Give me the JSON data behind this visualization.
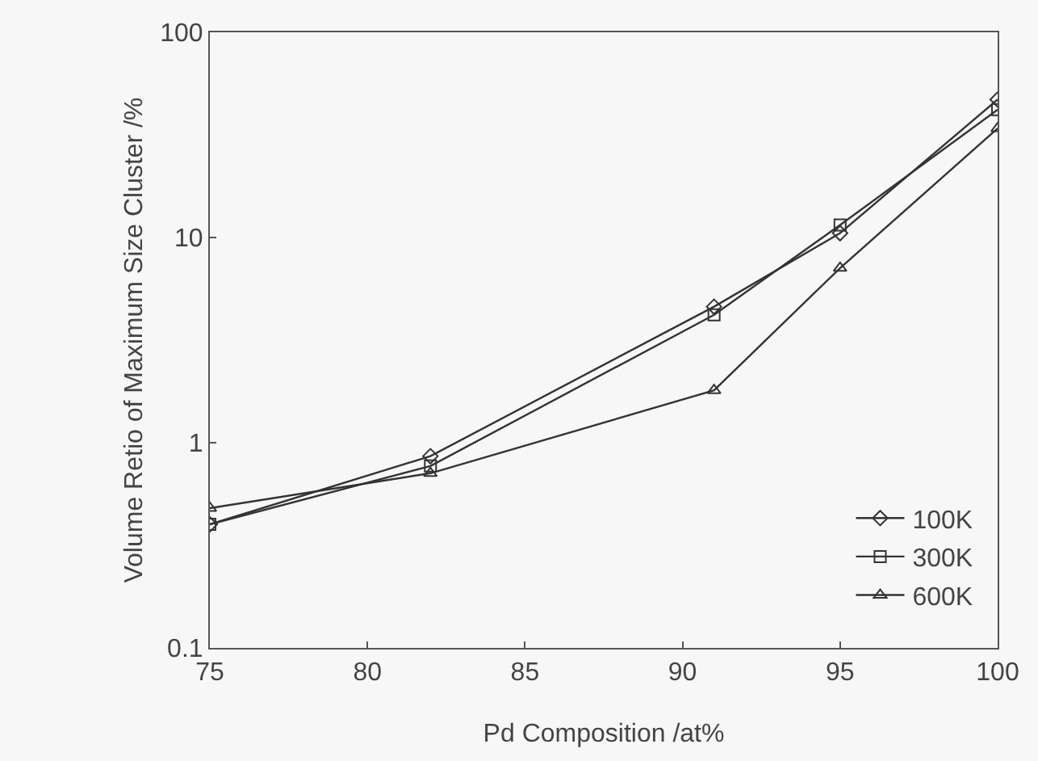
{
  "chart_data": {
    "type": "line",
    "xlabel": "Pd Composition /at%",
    "ylabel": "Volume Retio of Maximum Size Cluster /%",
    "x": [
      75,
      82,
      91,
      95,
      100
    ],
    "series": [
      {
        "name": "100K",
        "color": "#333333",
        "marker": "diamond",
        "values": [
          0.4,
          0.86,
          4.6,
          10.5,
          47
        ]
      },
      {
        "name": "300K",
        "color": "#333333",
        "marker": "square",
        "values": [
          0.4,
          0.77,
          4.2,
          11.5,
          42
        ]
      },
      {
        "name": "600K",
        "color": "#333333",
        "marker": "triangle",
        "values": [
          0.48,
          0.71,
          1.8,
          7.1,
          34
        ]
      }
    ],
    "log": "y",
    "xlim": [
      75,
      100
    ],
    "xticks": [
      75,
      80,
      85,
      90,
      95,
      100
    ],
    "ylim": [
      0.1,
      100
    ],
    "yticks": [
      0.1,
      1,
      10,
      100
    ],
    "grid": false,
    "legend": "bottom right",
    "line_style": "solid"
  }
}
